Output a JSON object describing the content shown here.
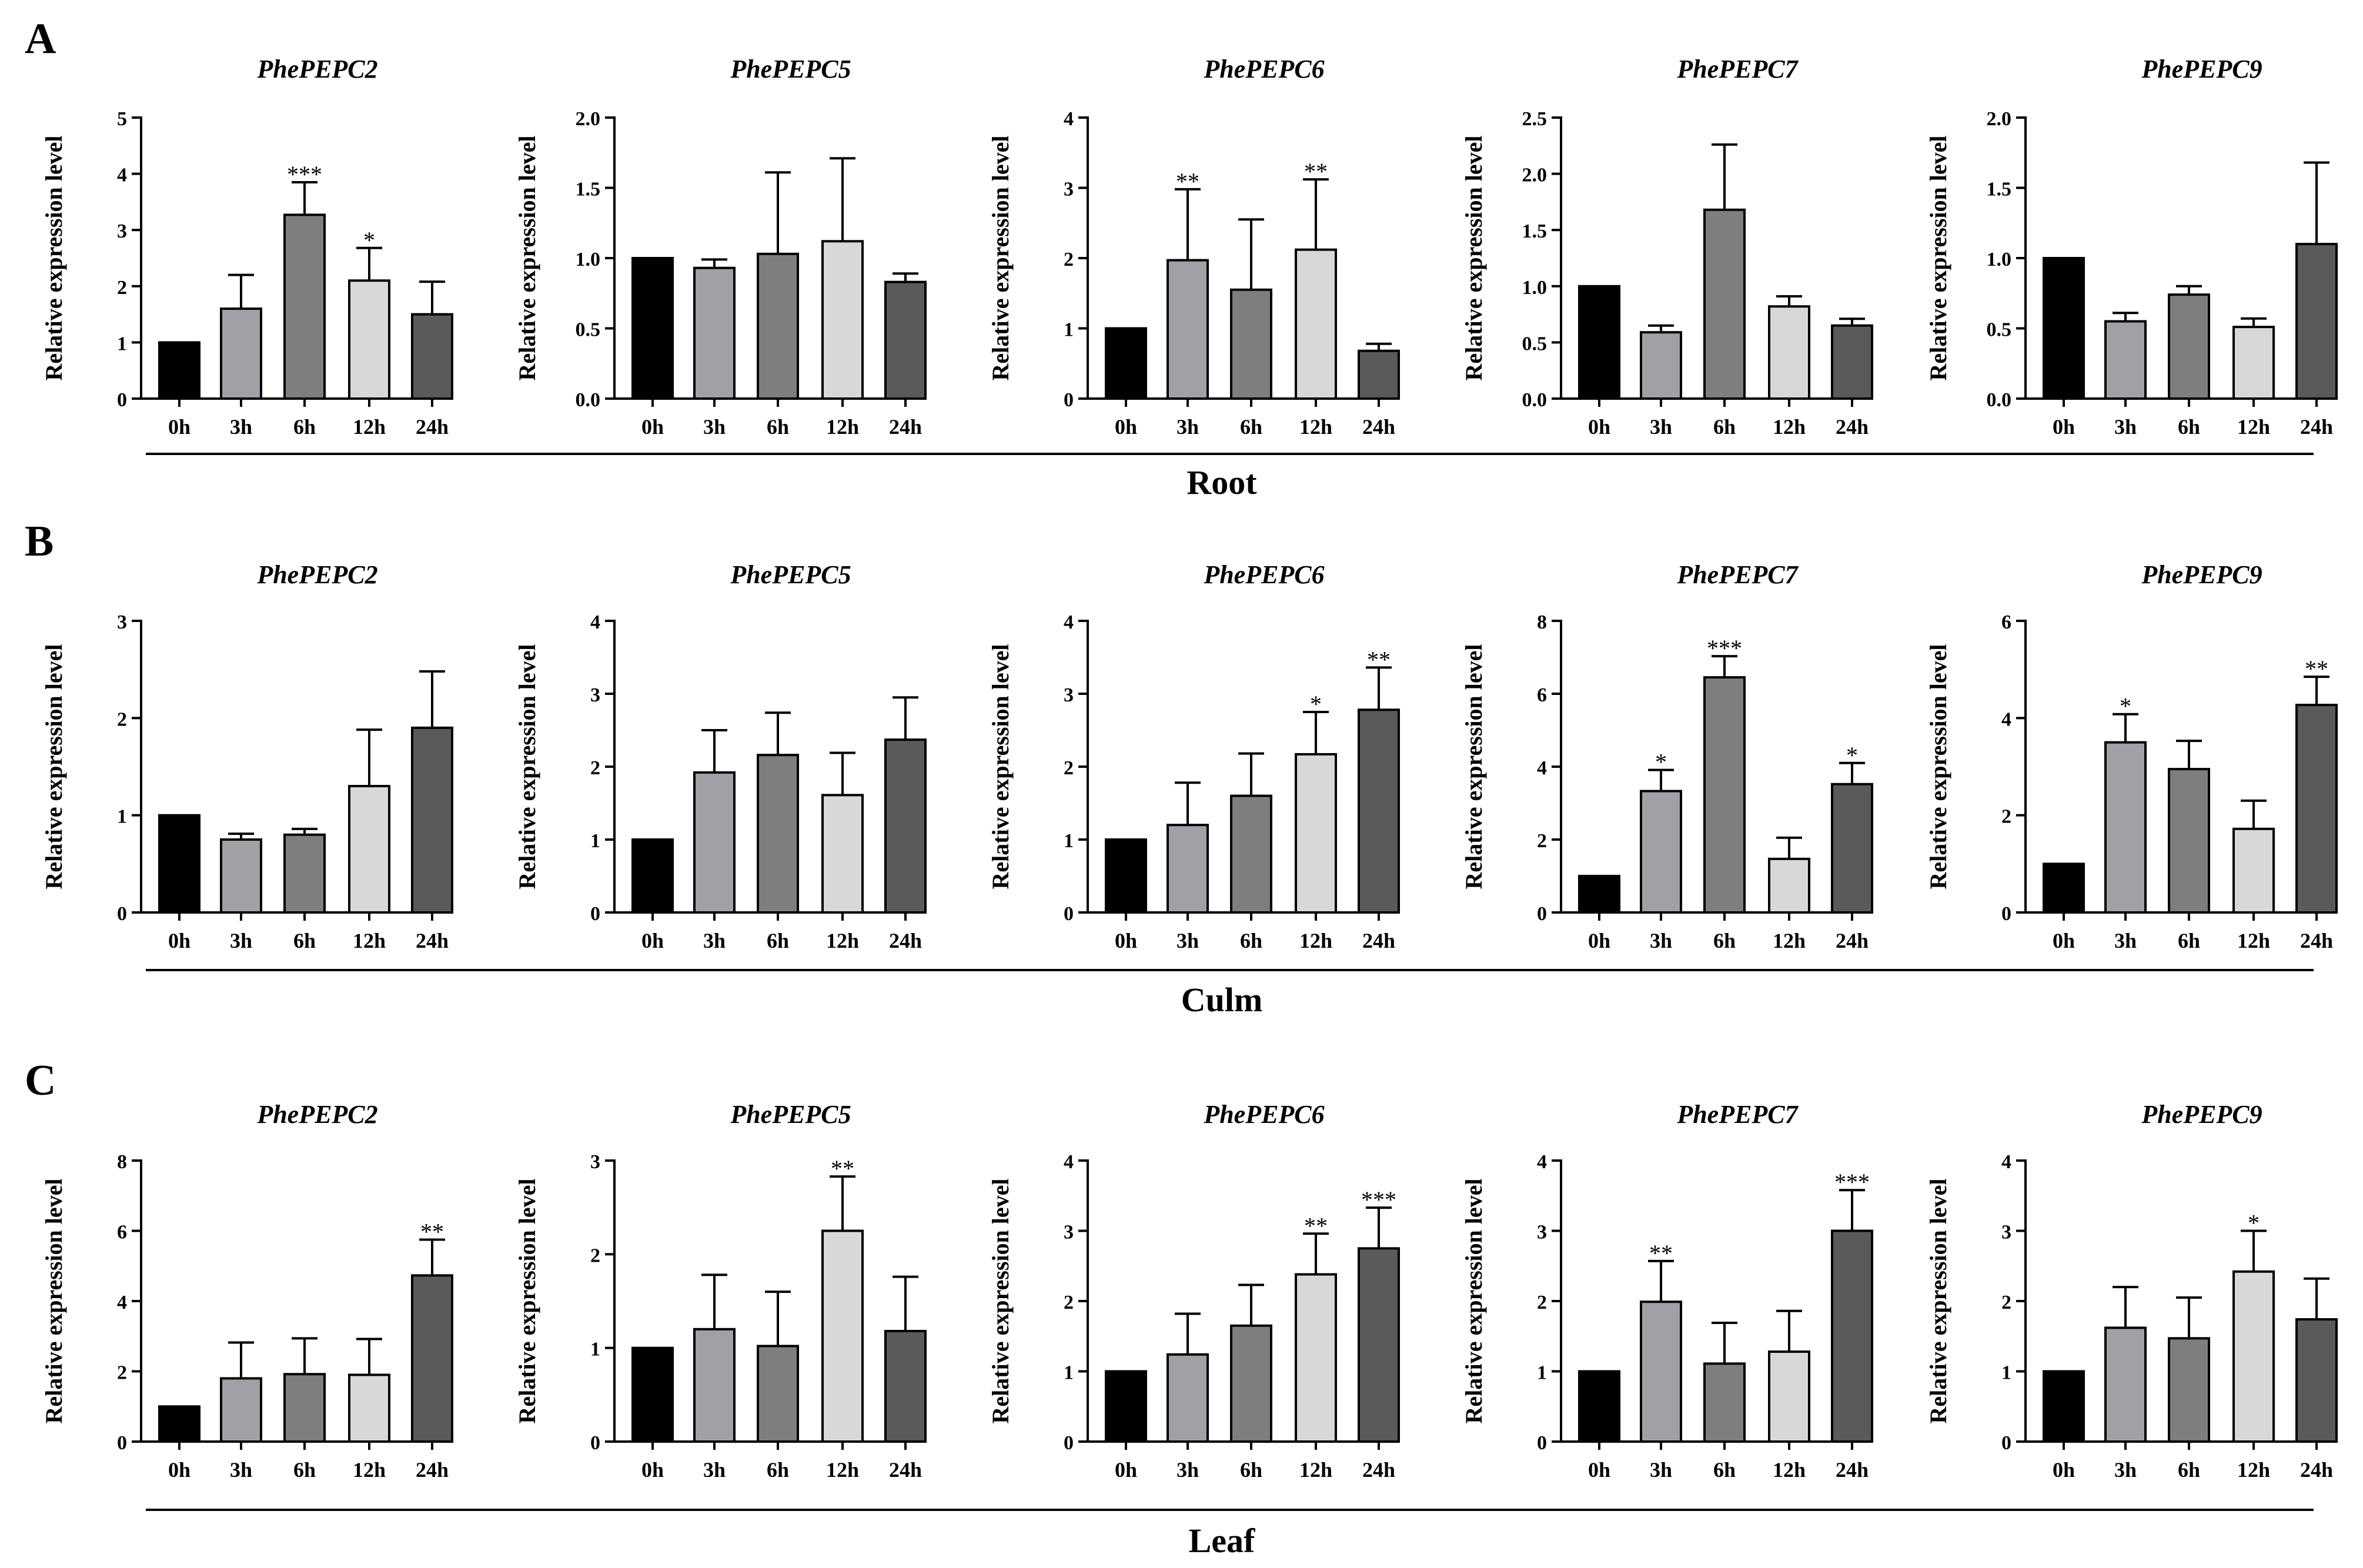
{
  "figure": {
    "categories": [
      "0h",
      "3h",
      "6h",
      "12h",
      "24h"
    ],
    "ylabel": "Relative expression level",
    "bar_colors": [
      "#000000",
      "#a0a0a6",
      "#7e7e7e",
      "#d8d8d8",
      "#5a5a5a"
    ],
    "panels": [
      {
        "letter": "A",
        "tissue": "Root",
        "charts": [
          {
            "type": "bar",
            "title": "PhePEPC2",
            "ylim": [
              0,
              5
            ],
            "yticks": [
              "0",
              "1",
              "2",
              "3",
              "4",
              "5"
            ],
            "values": [
              1.0,
              1.6,
              3.27,
              2.1,
              1.5
            ],
            "errors": [
              0,
              0.6,
              0.58,
              0.58,
              0.58
            ],
            "significance": [
              "",
              "",
              "***",
              "*",
              ""
            ]
          },
          {
            "type": "bar",
            "title": "PhePEPC5",
            "ylim": [
              0,
              2
            ],
            "yticks": [
              "0.0",
              "0.5",
              "1.0",
              "1.5",
              "2.0"
            ],
            "values": [
              1.0,
              0.93,
              1.03,
              1.12,
              0.83
            ],
            "errors": [
              0,
              0.06,
              0.58,
              0.59,
              0.06
            ],
            "significance": [
              "",
              "",
              "",
              "",
              ""
            ]
          },
          {
            "type": "bar",
            "title": "PhePEPC6",
            "ylim": [
              0,
              4
            ],
            "yticks": [
              "0",
              "1",
              "2",
              "3",
              "4"
            ],
            "values": [
              1.0,
              1.97,
              1.55,
              2.12,
              0.68
            ],
            "errors": [
              0,
              1.01,
              1.0,
              1.0,
              0.1
            ],
            "significance": [
              "",
              "**",
              "",
              "**",
              ""
            ]
          },
          {
            "type": "bar",
            "title": "PhePEPC7",
            "ylim": [
              0,
              2.5
            ],
            "yticks": [
              "0.0",
              "0.5",
              "1.0",
              "1.5",
              "2.0",
              "2.5"
            ],
            "values": [
              1.0,
              0.59,
              1.68,
              0.82,
              0.65
            ],
            "errors": [
              0,
              0.06,
              0.58,
              0.09,
              0.06
            ],
            "significance": [
              "",
              "",
              "",
              "",
              ""
            ]
          },
          {
            "type": "bar",
            "title": "PhePEPC9",
            "ylim": [
              0,
              2
            ],
            "yticks": [
              "0.0",
              "0.5",
              "1.0",
              "1.5",
              "2.0"
            ],
            "values": [
              1.0,
              0.55,
              0.74,
              0.51,
              1.1
            ],
            "errors": [
              0,
              0.06,
              0.06,
              0.06,
              0.58
            ],
            "significance": [
              "",
              "",
              "",
              "",
              ""
            ]
          }
        ]
      },
      {
        "letter": "B",
        "tissue": "Culm",
        "charts": [
          {
            "type": "bar",
            "title": "PhePEPC2",
            "ylim": [
              0,
              3
            ],
            "yticks": [
              "0",
              "1",
              "2",
              "3"
            ],
            "values": [
              1.0,
              0.75,
              0.8,
              1.3,
              1.9
            ],
            "errors": [
              0,
              0.06,
              0.06,
              0.58,
              0.58
            ],
            "significance": [
              "",
              "",
              "",
              "",
              ""
            ]
          },
          {
            "type": "bar",
            "title": "PhePEPC5",
            "ylim": [
              0,
              4
            ],
            "yticks": [
              "0",
              "1",
              "2",
              "3",
              "4"
            ],
            "values": [
              1.0,
              1.92,
              2.16,
              1.61,
              2.37
            ],
            "errors": [
              0,
              0.58,
              0.58,
              0.58,
              0.58
            ],
            "significance": [
              "",
              "",
              "",
              "",
              ""
            ]
          },
          {
            "type": "bar",
            "title": "PhePEPC6",
            "ylim": [
              0,
              4
            ],
            "yticks": [
              "0",
              "1",
              "2",
              "3",
              "4"
            ],
            "values": [
              1.0,
              1.2,
              1.6,
              2.17,
              2.78
            ],
            "errors": [
              0,
              0.58,
              0.58,
              0.58,
              0.58
            ],
            "significance": [
              "",
              "",
              "",
              "*",
              "**"
            ]
          },
          {
            "type": "bar",
            "title": "PhePEPC7",
            "ylim": [
              0,
              8
            ],
            "yticks": [
              "0",
              "2",
              "4",
              "6",
              "8"
            ],
            "values": [
              1.0,
              3.33,
              6.45,
              1.47,
              3.52
            ],
            "errors": [
              0,
              0.58,
              0.58,
              0.58,
              0.58
            ],
            "significance": [
              "",
              "*",
              "***",
              "",
              "*"
            ]
          },
          {
            "type": "bar",
            "title": "PhePEPC9",
            "ylim": [
              0,
              6
            ],
            "yticks": [
              "0",
              "2",
              "4",
              "6"
            ],
            "values": [
              1.0,
              3.5,
              2.95,
              1.72,
              4.27
            ],
            "errors": [
              0,
              0.58,
              0.58,
              0.58,
              0.58
            ],
            "significance": [
              "",
              "*",
              "",
              "",
              "**"
            ]
          }
        ]
      },
      {
        "letter": "C",
        "tissue": "Leaf",
        "charts": [
          {
            "type": "bar",
            "title": "PhePEPC2",
            "ylim": [
              0,
              8
            ],
            "yticks": [
              "0",
              "2",
              "4",
              "6",
              "8"
            ],
            "values": [
              1.0,
              1.8,
              1.92,
              1.9,
              4.73
            ],
            "errors": [
              0,
              1.02,
              1.02,
              1.02,
              1.02
            ],
            "significance": [
              "",
              "",
              "",
              "",
              "**"
            ]
          },
          {
            "type": "bar",
            "title": "PhePEPC5",
            "ylim": [
              0,
              3
            ],
            "yticks": [
              "0",
              "1",
              "2",
              "3"
            ],
            "values": [
              1.0,
              1.2,
              1.02,
              2.25,
              1.18
            ],
            "errors": [
              0,
              0.58,
              0.58,
              0.58,
              0.58
            ],
            "significance": [
              "",
              "",
              "",
              "**",
              ""
            ]
          },
          {
            "type": "bar",
            "title": "PhePEPC6",
            "ylim": [
              0,
              4
            ],
            "yticks": [
              "0",
              "1",
              "2",
              "3",
              "4"
            ],
            "values": [
              1.0,
              1.24,
              1.65,
              2.38,
              2.75
            ],
            "errors": [
              0,
              0.58,
              0.58,
              0.58,
              0.58
            ],
            "significance": [
              "",
              "",
              "",
              "**",
              "***"
            ]
          },
          {
            "type": "bar",
            "title": "PhePEPC7",
            "ylim": [
              0,
              4
            ],
            "yticks": [
              "0",
              "1",
              "2",
              "3",
              "4"
            ],
            "values": [
              1.0,
              1.99,
              1.11,
              1.28,
              3.0
            ],
            "errors": [
              0,
              0.58,
              0.58,
              0.58,
              0.58
            ],
            "significance": [
              "",
              "**",
              "",
              "",
              "***"
            ]
          },
          {
            "type": "bar",
            "title": "PhePEPC9",
            "ylim": [
              0,
              4
            ],
            "yticks": [
              "0",
              "1",
              "2",
              "3",
              "4"
            ],
            "values": [
              1.0,
              1.62,
              1.47,
              2.42,
              1.74
            ],
            "errors": [
              0,
              0.58,
              0.58,
              0.58,
              0.58
            ],
            "significance": [
              "",
              "",
              "",
              "*",
              ""
            ]
          }
        ]
      }
    ]
  }
}
